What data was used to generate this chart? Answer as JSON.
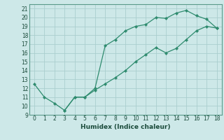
{
  "xlabel": "Humidex (Indice chaleur)",
  "line1_x": [
    0,
    1,
    2,
    3,
    4,
    5,
    6,
    7,
    8,
    9,
    10,
    11,
    12,
    13,
    14,
    15,
    16,
    17,
    18
  ],
  "line1_y": [
    12.5,
    11.0,
    10.3,
    9.5,
    11.0,
    11.0,
    12.0,
    16.8,
    17.5,
    18.5,
    19.0,
    19.2,
    20.0,
    19.9,
    20.5,
    20.8,
    20.2,
    19.8,
    18.8
  ],
  "line2_x": [
    3,
    4,
    5,
    6,
    7,
    8,
    9,
    10,
    11,
    12,
    13,
    14,
    15,
    16,
    17,
    18
  ],
  "line2_y": [
    9.5,
    11.0,
    11.0,
    11.8,
    12.5,
    13.2,
    14.0,
    15.0,
    15.8,
    16.6,
    16.0,
    16.5,
    17.5,
    18.5,
    19.0,
    18.8
  ],
  "line_color": "#2e8b6e",
  "bg_color": "#cde8e8",
  "grid_color": "#aacece",
  "xlim": [
    -0.5,
    18.5
  ],
  "ylim": [
    9,
    21.5
  ],
  "xticks": [
    0,
    1,
    2,
    3,
    4,
    5,
    6,
    7,
    8,
    9,
    10,
    11,
    12,
    13,
    14,
    15,
    16,
    17,
    18
  ],
  "yticks": [
    9,
    10,
    11,
    12,
    13,
    14,
    15,
    16,
    17,
    18,
    19,
    20,
    21
  ]
}
